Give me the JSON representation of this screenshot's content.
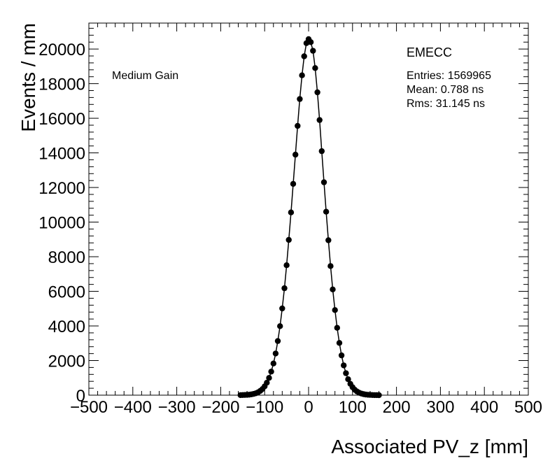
{
  "chart_data": {
    "type": "scatter",
    "xlabel": "Associated PV_z [mm]",
    "ylabel": "Events / mm",
    "xlim": [
      -500,
      500
    ],
    "ylim": [
      0,
      21500
    ],
    "x_ticks": [
      -500,
      -400,
      -300,
      -200,
      -100,
      0,
      100,
      200,
      300,
      400,
      500
    ],
    "y_ticks": [
      0,
      2000,
      4000,
      6000,
      8000,
      10000,
      12000,
      14000,
      16000,
      18000,
      20000
    ],
    "grid": false,
    "gain_label": "Medium Gain",
    "stats": {
      "name": "EMECC",
      "entries": "Entries: 1569965",
      "mean": "Mean: 0.788 ns",
      "rms": "Rms: 31.145 ns"
    },
    "series": [
      {
        "x": [
          -155,
          -150,
          -145,
          -140,
          -135,
          -130,
          -125,
          -120,
          -115,
          -110,
          -105,
          -100,
          -95,
          -90,
          -85,
          -80,
          -75,
          -70,
          -65,
          -60,
          -55,
          -50,
          -45,
          -40,
          -35,
          -30,
          -25,
          -20,
          -15,
          -10,
          -5,
          0,
          5,
          10,
          15,
          20,
          25,
          30,
          35,
          40,
          45,
          50,
          55,
          60,
          65,
          70,
          75,
          80,
          85,
          90,
          95,
          100,
          105,
          110,
          115,
          120,
          125,
          130,
          135,
          140,
          145,
          150,
          155,
          160
        ],
        "y": [
          5,
          8,
          12,
          20,
          30,
          47,
          73,
          110,
          165,
          245,
          355,
          510,
          720,
          1000,
          1360,
          1830,
          2410,
          3130,
          3990,
          5010,
          6180,
          7510,
          8970,
          10560,
          12210,
          13900,
          15560,
          17110,
          18480,
          19580,
          20340,
          20570,
          20400,
          19900,
          18900,
          17500,
          15900,
          14100,
          12300,
          10600,
          8950,
          7460,
          6110,
          4920,
          3890,
          3020,
          2300,
          1720,
          1270,
          920,
          655,
          460,
          315,
          215,
          143,
          94,
          60,
          38,
          24,
          15,
          9,
          5,
          3,
          2
        ]
      }
    ]
  }
}
